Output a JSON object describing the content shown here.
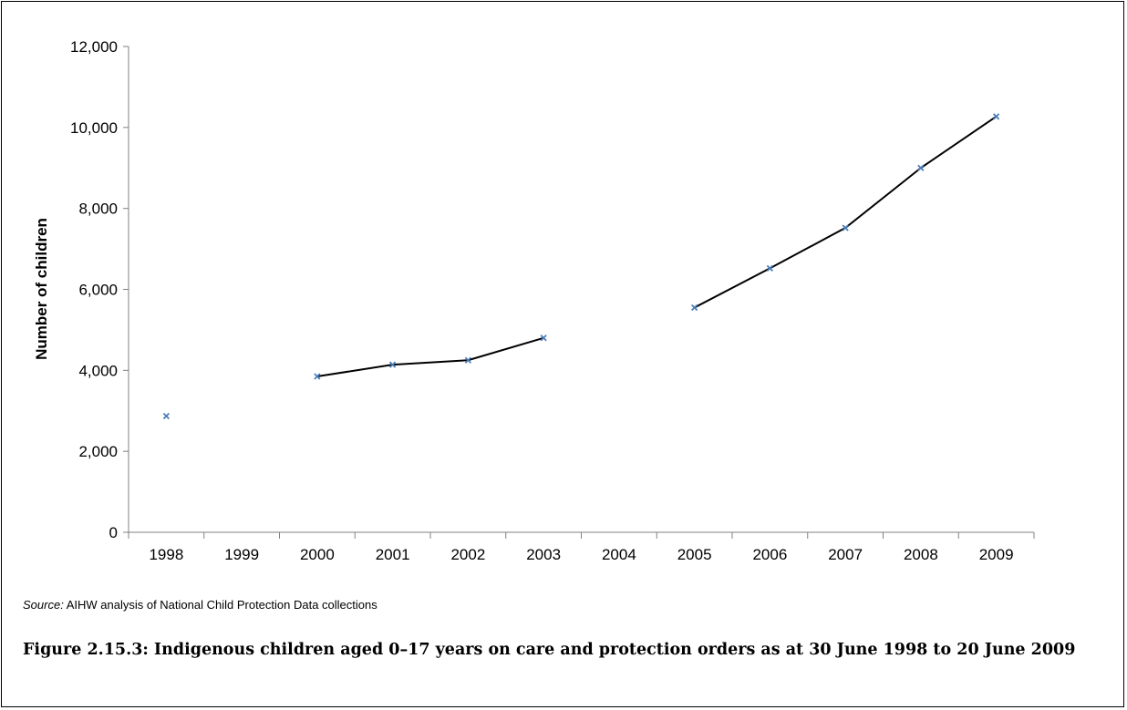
{
  "chart_data": {
    "type": "line",
    "categories": [
      "1998",
      "1999",
      "2000",
      "2001",
      "2002",
      "2003",
      "2004",
      "2005",
      "2006",
      "2007",
      "2008",
      "2009"
    ],
    "series": [
      {
        "values": [
          2870,
          null,
          3850,
          4140,
          4250,
          4800,
          null,
          5550,
          6520,
          7520,
          9000,
          10270
        ]
      }
    ],
    "ylabel": "Number of children",
    "xlabel": "",
    "ylim": [
      0,
      12000
    ],
    "yticks": [
      0,
      2000,
      4000,
      6000,
      8000,
      10000,
      12000
    ],
    "ytick_labels": [
      "0",
      "2,000",
      "4,000",
      "6,000",
      "8,000",
      "10,000",
      "12,000"
    ],
    "grid": false,
    "line_color": "#000000",
    "marker": "x",
    "marker_color": "#4a7ebb"
  },
  "source": {
    "label": "Source:",
    "text": " AIHW analysis of National Child Protection Data collections"
  },
  "caption": "Figure 2.15.3: Indigenous children aged 0–17 years on care and protection orders as at 30 June 1998 to 20 June 2009"
}
